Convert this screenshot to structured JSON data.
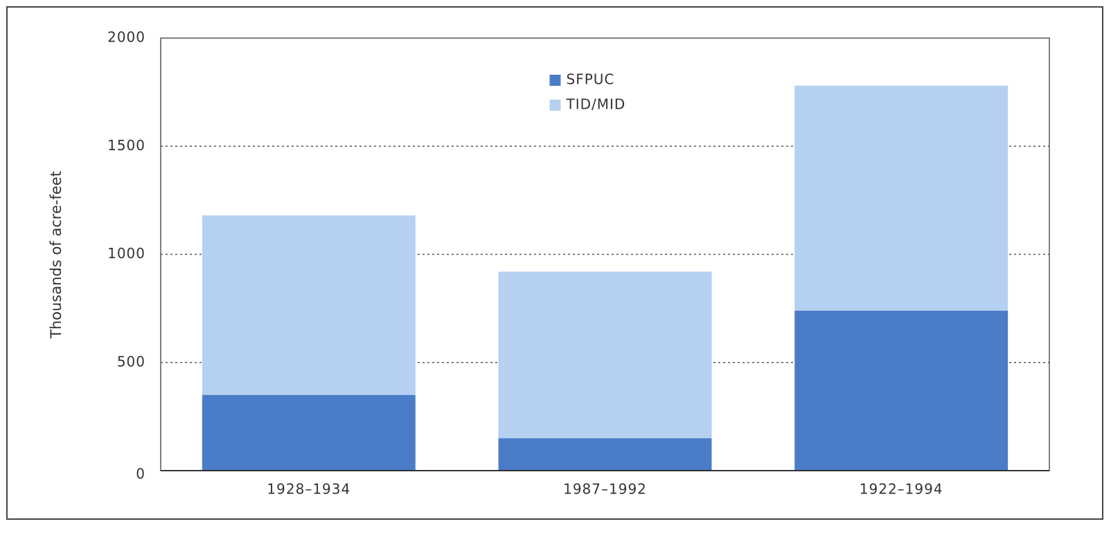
{
  "chart_data": {
    "type": "bar",
    "stacked": true,
    "y_label": "Thousands of acre-feet",
    "categories": [
      "1928–1934",
      "1987–1992",
      "1922–1994"
    ],
    "series": [
      {
        "name": "SFPUC",
        "color": "#4a7cc8",
        "values": [
          350,
          150,
          740
        ]
      },
      {
        "name": "TID/MID",
        "color": "#b5d0f0",
        "values": [
          830,
          770,
          1040
        ]
      }
    ],
    "ylim": [
      0,
      2000
    ],
    "yticks": [
      0,
      500,
      1000,
      1500,
      2000
    ],
    "grid": true,
    "legend": "upper center"
  }
}
